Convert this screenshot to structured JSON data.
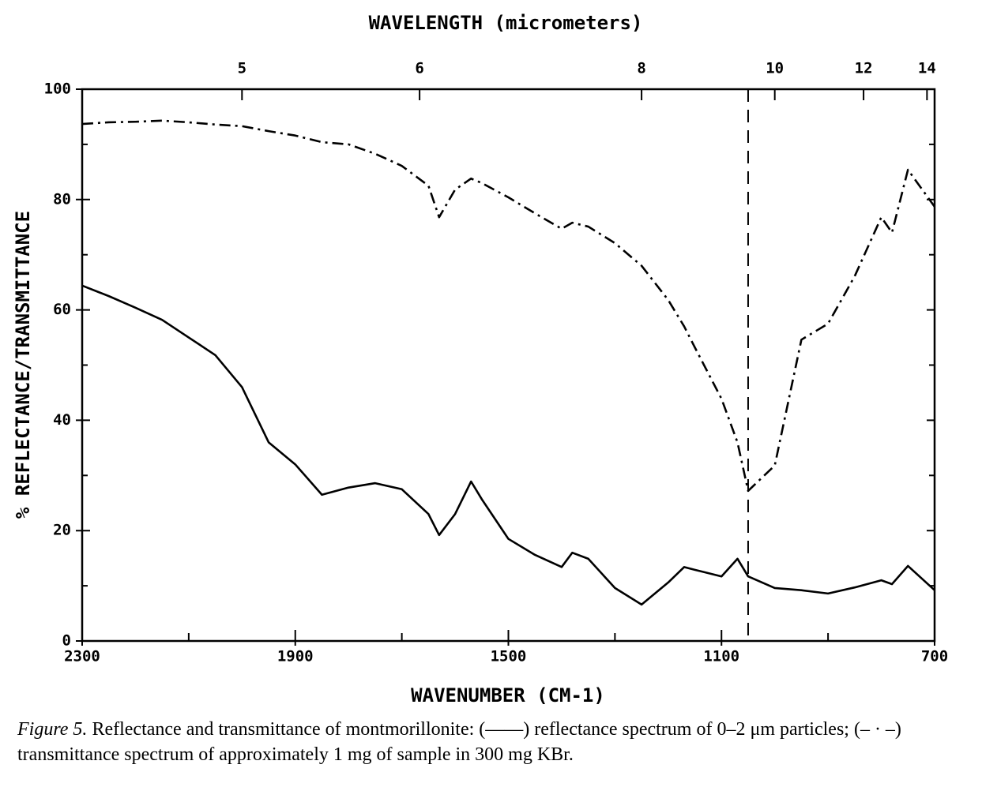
{
  "chart_data": {
    "type": "line",
    "top_axis_label": "WAVELENGTH (micrometers)",
    "xlabel": "WAVENUMBER (CM-1)",
    "ylabel": "% REFLECTANCE/TRANSMITTANCE",
    "x": [
      2300,
      2250,
      2200,
      2150,
      2100,
      2050,
      2000,
      1950,
      1900,
      1850,
      1800,
      1750,
      1700,
      1650,
      1630,
      1600,
      1570,
      1550,
      1500,
      1450,
      1400,
      1380,
      1350,
      1300,
      1250,
      1200,
      1170,
      1150,
      1100,
      1070,
      1050,
      1000,
      950,
      900,
      850,
      800,
      780,
      750,
      700
    ],
    "series": [
      {
        "color": "#000000",
        "dash": "solid",
        "values": [
          64.4,
          62.5,
          60.4,
          58.2,
          55,
          51.8,
          46,
          36,
          32,
          26.5,
          27.8,
          28.6,
          27.5,
          23,
          19.2,
          23,
          28.9,
          25.7,
          18.5,
          15.6,
          13.4,
          16,
          14.9,
          9.6,
          6.6,
          10.6,
          13.4,
          12.9,
          11.7,
          14.9,
          11.7,
          9.6,
          9.2,
          8.6,
          9.7,
          11,
          10.3,
          13.6,
          9.2
        ]
      },
      {
        "color": "#000000",
        "dash": "dashdot",
        "values": [
          93.7,
          94,
          94.1,
          94.3,
          94,
          93.6,
          93.3,
          92.4,
          91.6,
          90.4,
          90,
          88.3,
          86.1,
          82.5,
          76.8,
          81.8,
          83.8,
          83,
          80.4,
          77.5,
          74.7,
          75.8,
          75.1,
          72.1,
          68,
          61.8,
          57,
          53.2,
          43.9,
          36,
          27.2,
          31.8,
          54.6,
          57.5,
          66.1,
          76.8,
          74,
          85.4,
          78.7
        ]
      }
    ],
    "xlim": [
      2300,
      700
    ],
    "xticks": [
      2300,
      1900,
      1500,
      1100,
      700
    ],
    "xminor_ticks": [
      2100,
      1700,
      1300,
      900
    ],
    "x2ticks": [
      5,
      6,
      8,
      10,
      12,
      14
    ],
    "ylim": [
      0,
      100
    ],
    "yticks": [
      0,
      20,
      40,
      60,
      80,
      100
    ],
    "yminor_ticks": [
      10,
      30,
      50,
      70,
      90
    ],
    "reference_line_x": 1050,
    "caption_label": "Figure 5.",
    "caption": "Reflectance and transmittance of montmorillonite: (——) reflectance spectrum of 0–2 μm particles; (– · –) transmittance spectrum of approximately 1 mg of sample in 300 mg KBr."
  }
}
